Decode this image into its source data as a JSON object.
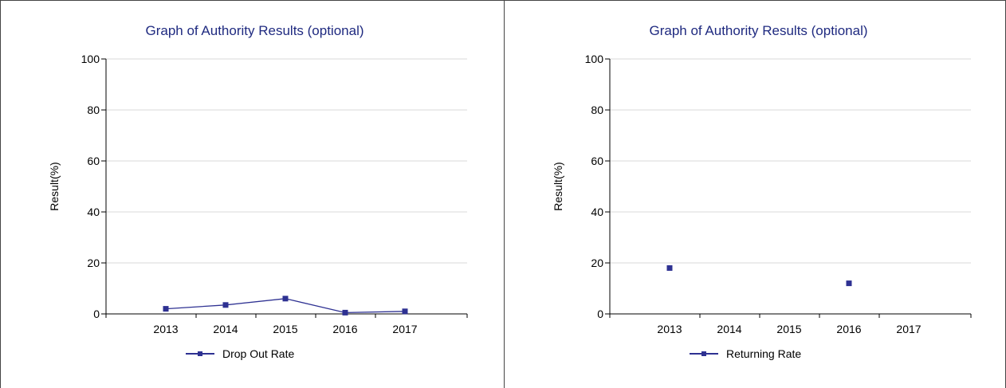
{
  "chart_data": [
    {
      "type": "line",
      "title": "Graph of Authority Results (optional)",
      "xlabel": "",
      "ylabel": "Result(%)",
      "categories": [
        "2013",
        "2014",
        "2015",
        "2016",
        "2017"
      ],
      "ylim": [
        0,
        100
      ],
      "yticks": [
        0,
        20,
        40,
        60,
        80,
        100
      ],
      "grid": "horizontal",
      "legend": "bottom",
      "color": "#2e3192",
      "series": [
        {
          "name": "Drop Out Rate",
          "values": [
            2,
            3.5,
            6,
            0.5,
            1
          ]
        }
      ]
    },
    {
      "type": "line",
      "title": "Graph of Authority Results (optional)",
      "xlabel": "",
      "ylabel": "Result(%)",
      "categories": [
        "2013",
        "2014",
        "2015",
        "2016",
        "2017"
      ],
      "ylim": [
        0,
        100
      ],
      "yticks": [
        0,
        20,
        40,
        60,
        80,
        100
      ],
      "grid": "horizontal",
      "legend": "bottom",
      "color": "#2e3192",
      "series": [
        {
          "name": "Returning Rate",
          "values": [
            18,
            null,
            null,
            12,
            null
          ]
        }
      ]
    }
  ]
}
